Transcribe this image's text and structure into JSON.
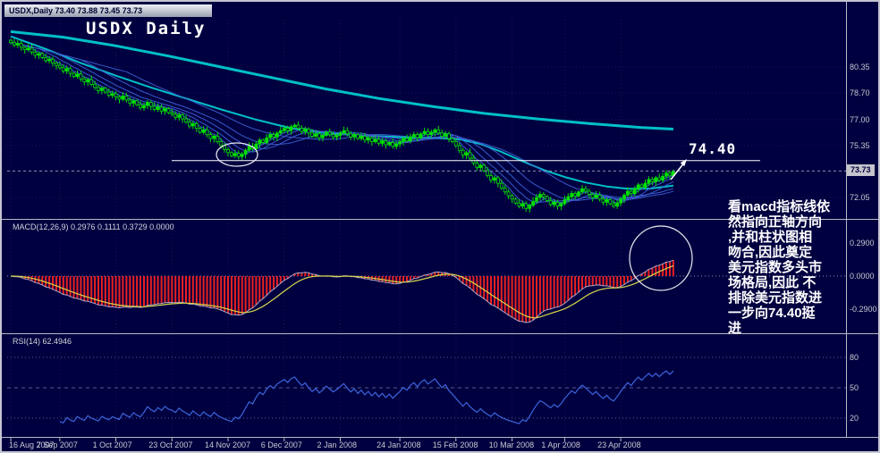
{
  "header": {
    "title_strip": "USDX,Daily  73.40 73.88 73.45 73.73",
    "big_title": "USDX Daily"
  },
  "annotation": {
    "text": "看macd指标线依\n然指向正轴方向\n,并和柱状图相\n吻合,因此奠定\n美元指数多头市\n场格局,因此 不\n排除美元指数进\n一步向74.40挺\n进"
  },
  "trendline": {
    "label": "74.40",
    "price": 74.4
  },
  "price_axis": {
    "labels": [
      {
        "text": "80.35",
        "price": 80.35
      },
      {
        "text": "78.70",
        "price": 78.7
      },
      {
        "text": "77.00",
        "price": 77.0
      },
      {
        "text": "75.35",
        "price": 75.35
      },
      {
        "text": "72.05",
        "price": 72.05
      }
    ],
    "current": {
      "text": "73.73",
      "price": 73.73
    }
  },
  "macd": {
    "label": "MACD(12,26,9) 0.2976 0.1111 0.3729 0.0000",
    "scale_labels": [
      {
        "text": "0.2900",
        "value": 0.29
      },
      {
        "text": "0.0000",
        "value": 0.0
      },
      {
        "text": "-0.2900",
        "value": -0.29
      }
    ]
  },
  "rsi": {
    "label": "RSI(14) 62.4946",
    "value": 62.4946,
    "levels": [
      {
        "text": "80",
        "value": 80
      },
      {
        "text": "50",
        "value": 50
      },
      {
        "text": "20",
        "value": 20
      }
    ]
  },
  "dates": [
    {
      "text": "16 Aug 2007",
      "day": 0
    },
    {
      "text": "7 Sep 2007",
      "day": 14
    },
    {
      "text": "1 Oct 2007",
      "day": 30
    },
    {
      "text": "23 Oct 2007",
      "day": 46
    },
    {
      "text": "14 Nov 2007",
      "day": 62
    },
    {
      "text": "6 Dec 2007",
      "day": 78
    },
    {
      "text": "2 Jan 2008",
      "day": 94
    },
    {
      "text": "24 Jan 2008",
      "day": 111
    },
    {
      "text": "15 Feb 2008",
      "day": 127
    },
    {
      "text": "10 Mar 2008",
      "day": 143
    },
    {
      "text": "1 Apr 2008",
      "day": 158
    },
    {
      "text": "23 Apr 2008",
      "day": 174
    }
  ],
  "colors": {
    "background": "#000040",
    "candle": "#00E000",
    "ma_fan": "#3C5FD2",
    "ma_teal": "#00C0C8",
    "macd_bar": "#E82020",
    "macd_line": "#C8D0EA",
    "macd_signal": "#D8D84A",
    "rsi_line": "#3C64DC",
    "trendline": "#FFFFFF",
    "scale_text": "#C8C8D0",
    "grid": "#191958"
  },
  "chart_data": {
    "type": "candlestick",
    "title": "USDX Daily",
    "symbol": "USDX",
    "timeframe": "Daily",
    "ohlc_current": {
      "open": 73.4,
      "high": 73.88,
      "low": 73.45,
      "close": 73.73
    },
    "ylim": [
      71.0,
      83.3
    ],
    "grid_prices": [
      80.35,
      78.7,
      77.0,
      75.35,
      73.7,
      72.05
    ],
    "closes": [
      81.9,
      81.75,
      81.85,
      81.6,
      81.45,
      81.55,
      81.3,
      81.1,
      81.2,
      80.95,
      80.75,
      80.85,
      80.6,
      80.45,
      80.3,
      80.1,
      80.25,
      79.95,
      79.75,
      79.9,
      79.6,
      79.4,
      79.55,
      79.25,
      79.05,
      78.85,
      79.0,
      78.75,
      78.55,
      78.65,
      78.45,
      78.3,
      78.5,
      78.25,
      78.05,
      78.2,
      77.95,
      77.75,
      77.9,
      78.1,
      77.85,
      77.65,
      77.8,
      77.55,
      77.7,
      77.45,
      77.35,
      77.15,
      77.3,
      77.05,
      76.85,
      76.6,
      76.75,
      76.45,
      76.2,
      76.35,
      76.05,
      75.8,
      75.95,
      75.6,
      75.35,
      75.1,
      74.9,
      74.7,
      74.85,
      74.65,
      74.8,
      75.05,
      75.3,
      75.15,
      75.45,
      75.7,
      75.55,
      75.85,
      76.05,
      75.9,
      76.15,
      76.3,
      76.45,
      76.3,
      76.55,
      76.65,
      76.45,
      76.25,
      76.4,
      76.15,
      75.95,
      76.1,
      75.85,
      76.0,
      76.2,
      76.05,
      75.9,
      76.0,
      76.15,
      76.3,
      76.1,
      75.9,
      76.05,
      75.8,
      75.95,
      75.7,
      75.85,
      75.6,
      75.75,
      75.5,
      75.65,
      75.4,
      75.55,
      75.3,
      75.45,
      75.6,
      75.8,
      75.65,
      75.9,
      76.05,
      75.85,
      76.1,
      76.25,
      76.05,
      76.2,
      76.35,
      76.15,
      75.95,
      76.1,
      75.8,
      75.6,
      75.35,
      75.05,
      74.75,
      74.9,
      74.55,
      74.25,
      73.95,
      74.1,
      73.75,
      73.45,
      73.15,
      73.3,
      72.95,
      72.65,
      72.4,
      72.15,
      71.95,
      71.7,
      71.5,
      71.65,
      71.35,
      71.55,
      71.8,
      72.05,
      72.25,
      72.1,
      71.85,
      71.6,
      71.75,
      71.5,
      71.65,
      71.9,
      72.1,
      72.3,
      72.15,
      72.4,
      72.6,
      72.45,
      72.25,
      72.05,
      72.2,
      71.95,
      71.75,
      71.9,
      71.65,
      71.5,
      71.7,
      71.95,
      72.2,
      72.45,
      72.3,
      72.6,
      72.85,
      72.7,
      72.95,
      73.2,
      73.05,
      73.3,
      73.15,
      73.4,
      73.6,
      73.45,
      73.73
    ],
    "ma_fan_periods": [
      5,
      9,
      14,
      21,
      34
    ],
    "ma_teal_slow_points": [
      [
        0,
        82.6
      ],
      [
        15,
        82.25
      ],
      [
        30,
        81.7
      ],
      [
        45,
        81.05
      ],
      [
        60,
        80.35
      ],
      [
        75,
        79.65
      ],
      [
        90,
        78.95
      ],
      [
        105,
        78.35
      ],
      [
        120,
        77.85
      ],
      [
        135,
        77.4
      ],
      [
        150,
        77.05
      ],
      [
        165,
        76.75
      ],
      [
        180,
        76.5
      ],
      [
        189,
        76.4
      ]
    ],
    "ma_teal_fast_points": [
      [
        0,
        82.3
      ],
      [
        10,
        81.5
      ],
      [
        20,
        80.6
      ],
      [
        30,
        79.8
      ],
      [
        40,
        79.05
      ],
      [
        50,
        78.35
      ],
      [
        60,
        77.65
      ],
      [
        70,
        77.0
      ],
      [
        80,
        76.45
      ],
      [
        90,
        76.15
      ],
      [
        100,
        76.0
      ],
      [
        110,
        75.9
      ],
      [
        120,
        75.85
      ],
      [
        128,
        75.75
      ],
      [
        134,
        75.45
      ],
      [
        140,
        74.95
      ],
      [
        146,
        74.35
      ],
      [
        152,
        73.8
      ],
      [
        158,
        73.35
      ],
      [
        164,
        73.0
      ],
      [
        170,
        72.75
      ],
      [
        176,
        72.6
      ],
      [
        182,
        72.6
      ],
      [
        189,
        72.8
      ]
    ],
    "macd_params": [
      12,
      26,
      9
    ],
    "rsi_period": 14
  }
}
